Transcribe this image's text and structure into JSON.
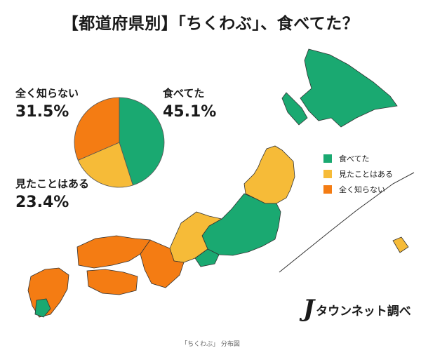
{
  "title": "【都道府県別】「ちくわぶ」、食べてた？",
  "chart_data": {
    "type": "pie",
    "title": "【都道府県別】「ちくわぶ」、食べてた？",
    "slices": [
      {
        "label": "食べてた",
        "value": 45.1,
        "value_text": "45.1%",
        "color": "#1aa971"
      },
      {
        "label": "見たことはある",
        "value": 23.4,
        "value_text": "23.4%",
        "color": "#f6bb38"
      },
      {
        "label": "全く知らない",
        "value": 31.5,
        "value_text": "31.5%",
        "color": "#f47c13"
      }
    ]
  },
  "legend": [
    {
      "label": "食べてた",
      "color": "#1aa971"
    },
    {
      "label": "見たことはある",
      "color": "#f6bb38"
    },
    {
      "label": "全く知らない",
      "color": "#f47c13"
    }
  ],
  "source_logo": {
    "mark": "J",
    "text": "タウンネット調べ"
  },
  "caption": "「ちくわぶ」 分布図"
}
